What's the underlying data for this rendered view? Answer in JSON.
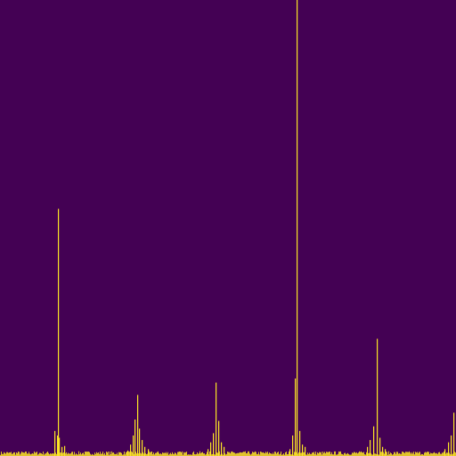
{
  "chart_data": {
    "type": "bar",
    "title": "",
    "xlabel": "",
    "ylabel": "",
    "xlim": [
      0,
      511
    ],
    "ylim": [
      0,
      1
    ],
    "grid": false,
    "legend": "none",
    "background_color": "#440154",
    "bar_color": "#fde725",
    "baseline_noise_level": 0.008,
    "bins": [
      [
        61,
        0.055
      ],
      [
        64,
        0.045
      ],
      [
        65,
        0.542
      ],
      [
        66,
        0.04
      ],
      [
        69,
        0.02
      ],
      [
        72,
        0.022
      ],
      [
        143,
        0.012
      ],
      [
        146,
        0.025
      ],
      [
        149,
        0.045
      ],
      [
        151,
        0.08
      ],
      [
        154,
        0.134
      ],
      [
        156,
        0.06
      ],
      [
        159,
        0.035
      ],
      [
        162,
        0.02
      ],
      [
        166,
        0.015
      ],
      [
        233,
        0.015
      ],
      [
        236,
        0.03
      ],
      [
        239,
        0.05
      ],
      [
        242,
        0.161
      ],
      [
        245,
        0.077
      ],
      [
        248,
        0.03
      ],
      [
        251,
        0.02
      ],
      [
        325,
        0.015
      ],
      [
        328,
        0.045
      ],
      [
        331,
        0.17
      ],
      [
        333,
        1.0
      ],
      [
        336,
        0.055
      ],
      [
        339,
        0.025
      ],
      [
        342,
        0.02
      ],
      [
        412,
        0.02
      ],
      [
        415,
        0.035
      ],
      [
        419,
        0.065
      ],
      [
        423,
        0.257
      ],
      [
        426,
        0.04
      ],
      [
        429,
        0.02
      ],
      [
        432,
        0.015
      ],
      [
        499,
        0.015
      ],
      [
        503,
        0.03
      ],
      [
        506,
        0.045
      ],
      [
        509,
        0.095
      ]
    ]
  }
}
